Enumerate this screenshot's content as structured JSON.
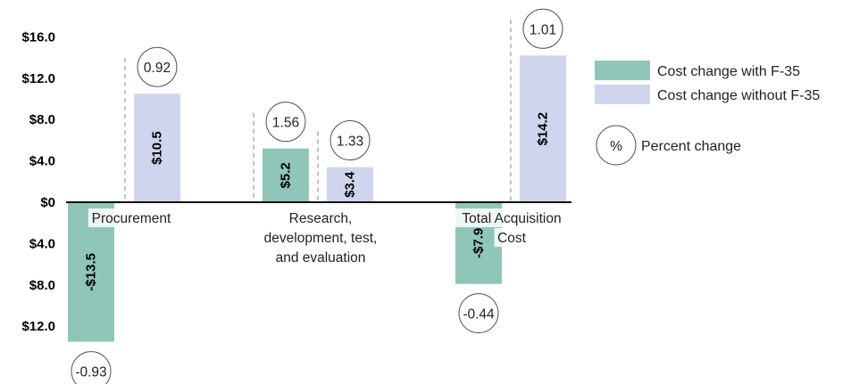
{
  "chart_data": {
    "type": "bar",
    "categories": [
      "Procurement",
      "Research, development, test, and evaluation",
      "Total Acquisition Cost"
    ],
    "category_lines": [
      [
        "Procurement"
      ],
      [
        "Research,",
        "development, test,",
        "and evaluation"
      ],
      [
        "Total Acquisition",
        "Cost"
      ]
    ],
    "series": [
      {
        "name": "Cost change with F-35",
        "color": "#8fc6b8",
        "values": [
          -13.5,
          5.2,
          -7.9
        ],
        "labels": [
          "-$13.5",
          "$5.2",
          "-$7.9"
        ],
        "percent": [
          "-0.93",
          "1.56",
          "-0.44"
        ]
      },
      {
        "name": "Cost change without F-35",
        "color": "#d0d4ec",
        "values": [
          10.5,
          3.4,
          14.2
        ],
        "labels": [
          "$10.5",
          "$3.4",
          "$14.2"
        ],
        "percent": [
          "0.92",
          "1.33",
          "1.01"
        ]
      }
    ],
    "yticks": [
      {
        "value": 16,
        "label": "$16.0"
      },
      {
        "value": 12,
        "label": "$12.0"
      },
      {
        "value": 8,
        "label": "$8.0"
      },
      {
        "value": 4,
        "label": "$4.0"
      },
      {
        "value": 0,
        "label": "$0"
      },
      {
        "value": -4,
        "label": "$4.0"
      },
      {
        "value": -8,
        "label": "$8.0"
      },
      {
        "value": -12,
        "label": "$12.0"
      }
    ],
    "ylim": [
      -13.5,
      16
    ],
    "legend": {
      "placement": "right",
      "percent_symbol": "%",
      "percent_text": "Percent change"
    }
  }
}
